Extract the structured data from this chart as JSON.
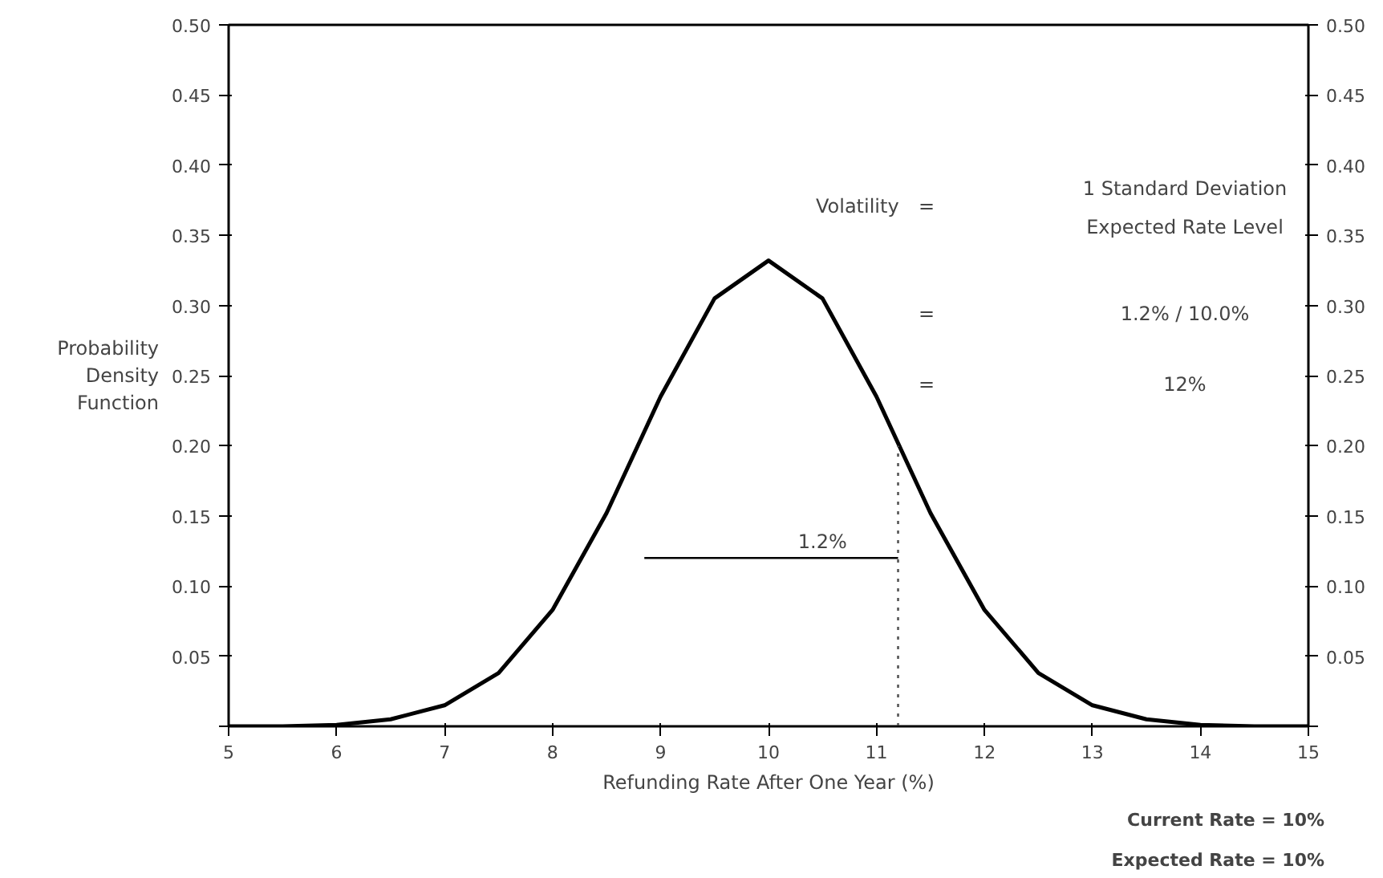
{
  "chart_data": {
    "type": "line",
    "xlabel": "Refunding Rate After One Year (%)",
    "ylabel": "Probability\nDensity\nFunction",
    "xlim": [
      5,
      15
    ],
    "xticks": [
      5,
      6,
      7,
      8,
      9,
      10,
      11,
      12,
      13,
      14,
      15
    ],
    "ylim": [
      0,
      0.5
    ],
    "yticks": [
      {
        "value": 0,
        "label": null
      },
      0.05,
      {
        "value": 0.1,
        "label": "0.10"
      },
      0.15,
      {
        "value": 0.2,
        "label": "0.20"
      },
      0.25,
      {
        "value": 0.3,
        "label": "0.30"
      },
      0.35,
      {
        "value": 0.4,
        "label": "0.40"
      },
      0.45,
      {
        "value": 0.5,
        "label": "0.50"
      }
    ],
    "y2lim": [
      0,
      0.5
    ],
    "y2ticks": [
      {
        "value": 0,
        "label": null
      },
      0.05,
      {
        "value": 0.1,
        "label": "0.10"
      },
      0.15,
      {
        "value": 0.2,
        "label": "0.20"
      },
      0.25,
      {
        "value": 0.3,
        "label": "0.30"
      },
      0.35,
      {
        "value": 0.4,
        "label": "0.40"
      },
      0.45,
      {
        "value": 0.5,
        "label": "0.50"
      }
    ],
    "grid": false,
    "marker": "none",
    "series": [
      {
        "color": "#000000",
        "x": [
          5,
          5.5,
          6,
          6.5,
          7,
          7.5,
          8,
          8.5,
          9,
          9.5,
          10,
          10.5,
          11,
          11.5,
          12,
          12.5,
          13,
          13.5,
          14,
          14.5,
          15
        ],
        "values": [
          0.0,
          0.0,
          0.001,
          0.005,
          0.015,
          0.038,
          0.083,
          0.152,
          0.235,
          0.305,
          0.332,
          0.305,
          0.235,
          0.152,
          0.083,
          0.038,
          0.015,
          0.005,
          0.001,
          0.0,
          0.0
        ],
        "line_style": "solid"
      },
      {
        "color": "#000000",
        "x": [
          8.85,
          11.2
        ],
        "values": [
          0.12,
          0.12
        ],
        "line_style": "solid"
      },
      {
        "color": "#555555",
        "x": [
          11.2,
          11.2
        ],
        "values": [
          0,
          0.2
        ],
        "line_style": "dotted"
      }
    ],
    "annotations": [
      {
        "text": "1.2%",
        "x": 10.5,
        "y": 0.12
      },
      "Volatility",
      "=",
      "1 Standard Deviation",
      "Expected Rate Level",
      "=",
      "1.2% / 10.0%",
      "=",
      "12%",
      "Current Rate = 10%",
      "Expected Rate = 10%"
    ]
  }
}
